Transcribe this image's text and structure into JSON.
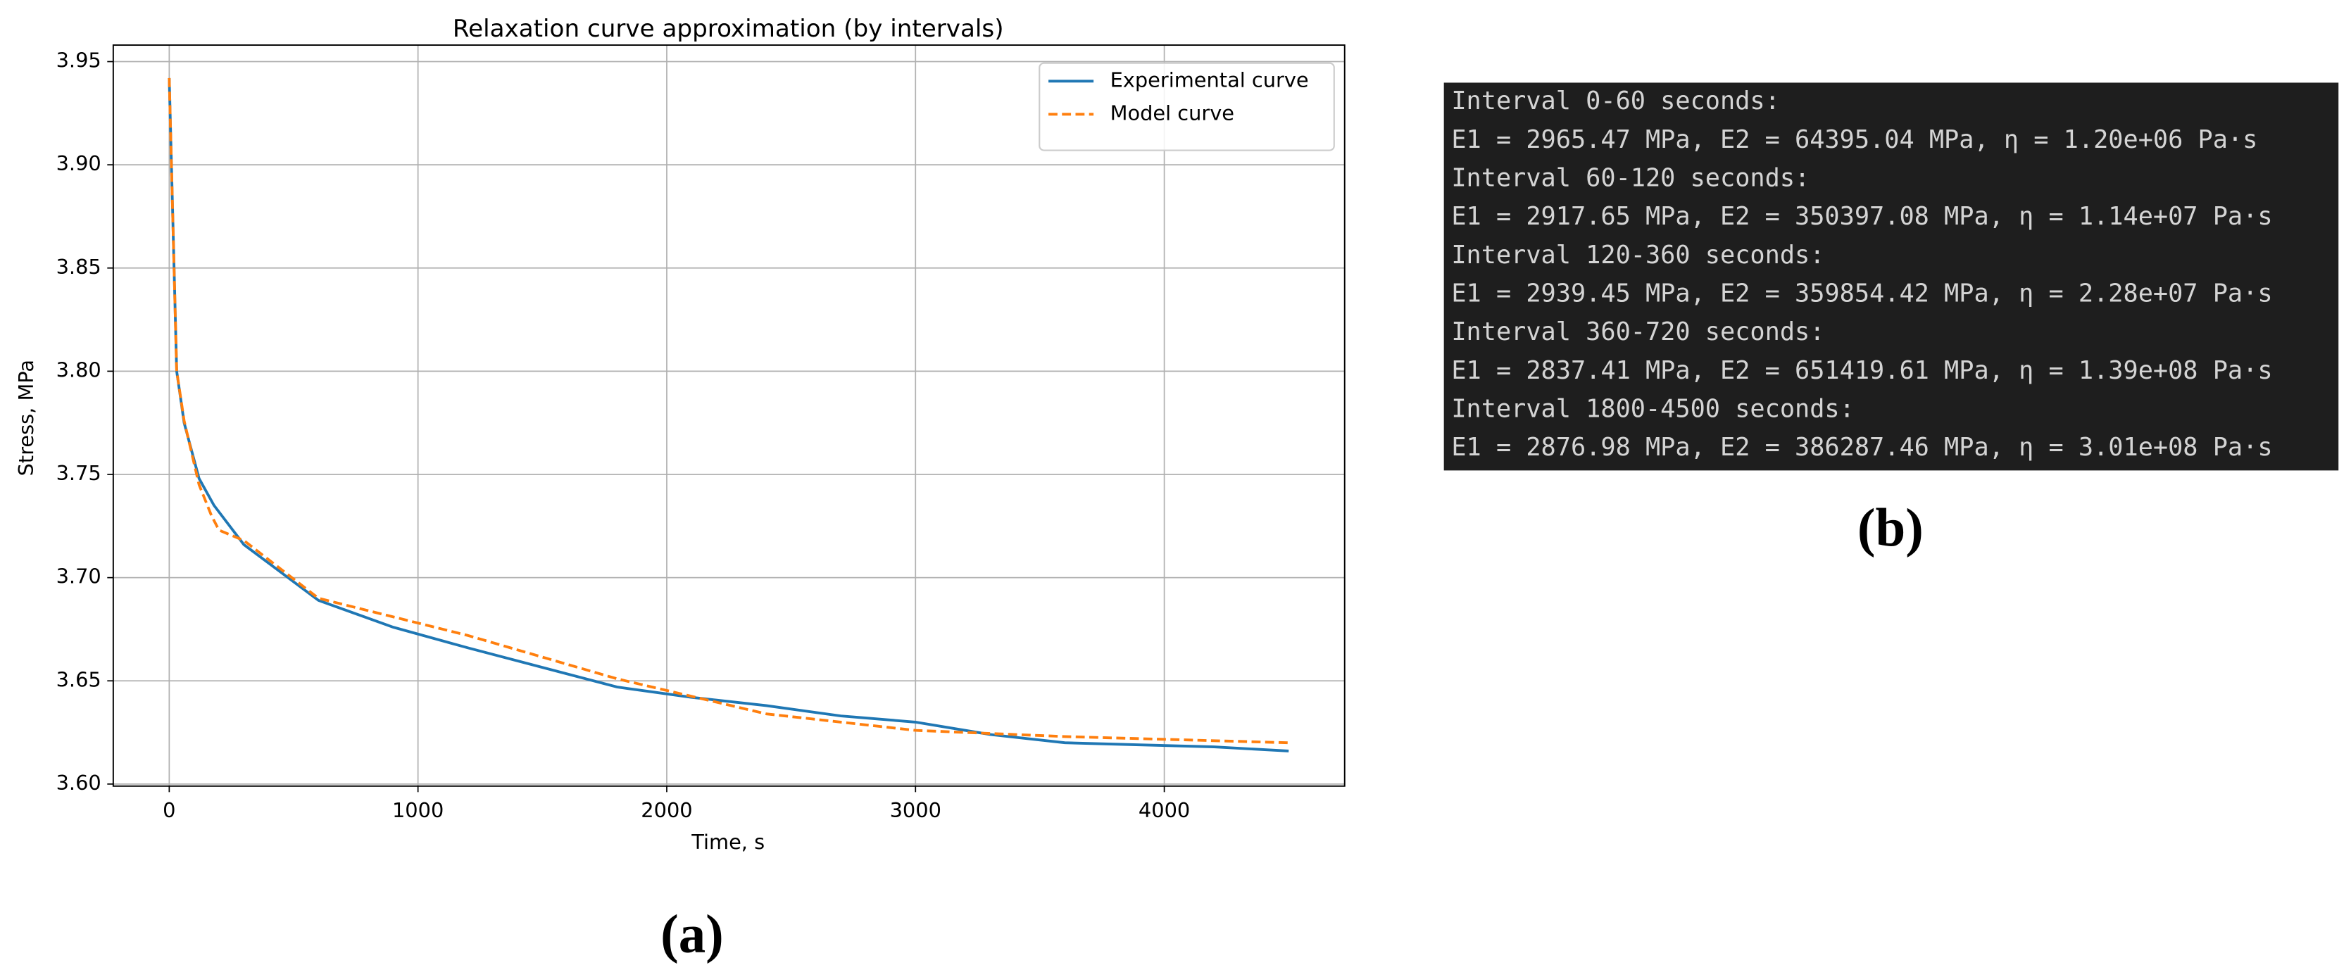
{
  "chart_data": {
    "type": "line",
    "title": "Relaxation curve approximation (by intervals)",
    "xlabel": "Time, s",
    "ylabel": "Stress, MPa",
    "xlim": [
      -225,
      4725
    ],
    "ylim": [
      3.599,
      3.958
    ],
    "xticks": [
      0,
      1000,
      2000,
      3000,
      4000
    ],
    "yticks": [
      {
        "value": 3.6,
        "label": "3.60"
      },
      3.65,
      {
        "value": 3.7,
        "label": "3.70"
      },
      3.75,
      {
        "value": 3.8,
        "label": "3.80"
      },
      3.85,
      {
        "value": 3.9,
        "label": "3.90"
      },
      3.95
    ],
    "grid": true,
    "legend": "upper right",
    "series": [
      {
        "name": "Experimental curve",
        "color": "#1f77b4",
        "dash": false,
        "x": [
          0,
          30,
          60,
          120,
          180,
          300,
          600,
          900,
          1200,
          1800,
          2100,
          2400,
          2700,
          3000,
          3300,
          3600,
          3900,
          4200,
          4500
        ],
        "values": [
          3.942,
          3.8,
          3.775,
          3.748,
          3.735,
          3.716,
          3.689,
          3.676,
          3.666,
          3.647,
          3.642,
          3.638,
          3.633,
          3.63,
          3.624,
          3.62,
          3.619,
          3.618,
          3.616
        ]
      },
      {
        "name": "Model curve",
        "color": "#ff7f0e",
        "dash": true,
        "x": [
          0,
          30,
          60,
          120,
          170,
          200,
          300,
          600,
          1200,
          1800,
          2400,
          3000,
          3600,
          4500
        ],
        "values": [
          3.942,
          3.8,
          3.776,
          3.745,
          3.73,
          3.723,
          3.718,
          3.69,
          3.672,
          3.651,
          3.634,
          3.626,
          3.623,
          3.62
        ]
      }
    ]
  },
  "console": {
    "lines": [
      "Interval 0-60 seconds:",
      "E1 = 2965.47 MPa, E2 = 64395.04 MPa, η = 1.20e+06 Pa·s",
      "Interval 60-120 seconds:",
      "E1 = 2917.65 MPa, E2 = 350397.08 MPa, η = 1.14e+07 Pa·s",
      "Interval 120-360 seconds:",
      "E1 = 2939.45 MPa, E2 = 359854.42 MPa, η = 2.28e+07 Pa·s",
      "Interval 360-720 seconds:",
      "E1 = 2837.41 MPa, E2 = 651419.61 MPa, η = 1.39e+08 Pa·s",
      "Interval 1800-4500 seconds:",
      "E1 = 2876.98 MPa, E2 = 386287.46 MPa, η = 3.01e+08 Pa·s"
    ]
  },
  "panels": [
    "(a)",
    "(b)"
  ]
}
